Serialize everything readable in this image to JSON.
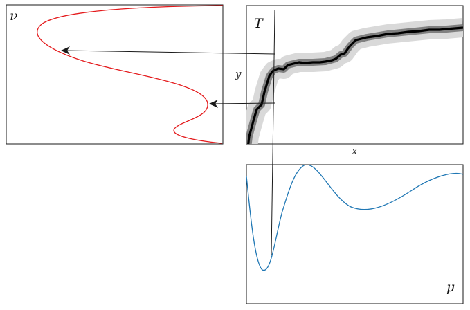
{
  "labels": {
    "nu": "ν",
    "T": "T",
    "mu": "μ",
    "x_axis": "𝑥",
    "y_axis": "𝑦"
  },
  "colors": {
    "nu_curve": "#e41a1c",
    "mu_curve": "#1f77b4",
    "transport_core": "#000000",
    "transport_inner_band": "#808080",
    "transport_outer_band": "#d9d9d9",
    "frame": "#1a1a1a",
    "arrow": "#1a1a1a"
  },
  "icons": {
    "arrowhead": "arrowhead-icon"
  }
}
